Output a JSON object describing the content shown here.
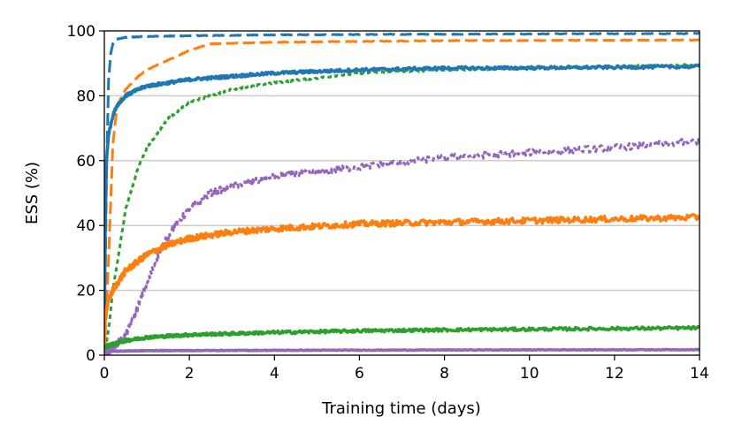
{
  "chart_data": {
    "type": "line",
    "title": "",
    "xlabel": "Training time (days)",
    "ylabel": "ESS (%)",
    "xlim": [
      0,
      14
    ],
    "ylim": [
      0,
      100
    ],
    "xticks": [
      0,
      2,
      4,
      6,
      8,
      10,
      12,
      14
    ],
    "yticks": [
      0,
      20,
      40,
      60,
      80,
      100
    ],
    "grid": "horizontal",
    "legend": "none",
    "colors": {
      "blue": "#1f77b4",
      "orange": "#ff7f0e",
      "green": "#2ca02c",
      "purple": "#9467bd"
    },
    "series": [
      {
        "name": "blue-dashed",
        "color": "#1f77b4",
        "style": "dashed",
        "noise": 0.1,
        "x": [
          0,
          0.05,
          0.1,
          0.15,
          0.2,
          0.3,
          0.5,
          1,
          2,
          4,
          8,
          14
        ],
        "y": [
          0,
          55,
          85,
          93,
          96,
          97.5,
          98,
          98.3,
          98.5,
          98.8,
          99,
          99.2
        ]
      },
      {
        "name": "orange-dashed",
        "color": "#ff7f0e",
        "style": "dashed",
        "noise": 0.1,
        "x": [
          0,
          0.1,
          0.2,
          0.3,
          0.5,
          0.8,
          1,
          1.5,
          2,
          2.5,
          4,
          8,
          14
        ],
        "y": [
          0,
          30,
          65,
          77,
          82,
          86,
          88,
          91,
          94,
          96,
          96.5,
          97,
          97.2
        ]
      },
      {
        "name": "green-dotted",
        "color": "#2ca02c",
        "style": "dotted",
        "noise": 0.3,
        "x": [
          0,
          0.1,
          0.2,
          0.3,
          0.5,
          0.8,
          1,
          1.5,
          2,
          3,
          4,
          6,
          8,
          10,
          12,
          14
        ],
        "y": [
          0,
          8,
          20,
          28,
          45,
          58,
          64,
          73,
          78,
          82,
          84,
          87,
          88,
          88.5,
          89,
          89.5
        ]
      },
      {
        "name": "purple-dotted",
        "color": "#9467bd",
        "style": "dotted",
        "noise": 1.0,
        "x": [
          0,
          0.5,
          0.7,
          1,
          1.3,
          1.6,
          2,
          2.5,
          3,
          4,
          5,
          6,
          8,
          10,
          12,
          14
        ],
        "y": [
          0,
          6,
          12,
          22,
          32,
          39,
          45,
          50,
          52,
          55,
          56.5,
          58,
          61,
          62.5,
          64,
          66
        ]
      },
      {
        "name": "blue-solid",
        "color": "#1f77b4",
        "style": "solid",
        "noise": 0.45,
        "x": [
          0,
          0.02,
          0.05,
          0.1,
          0.2,
          0.3,
          0.5,
          0.8,
          1,
          2,
          3,
          4,
          6,
          8,
          10,
          12,
          14
        ],
        "y": [
          0,
          40,
          60,
          68,
          74,
          77,
          80,
          82,
          83,
          85,
          86,
          87,
          88,
          88.5,
          88.6,
          88.8,
          89
        ]
      },
      {
        "name": "orange-solid",
        "color": "#ff7f0e",
        "style": "solid",
        "noise": 0.9,
        "x": [
          0,
          0.02,
          0.05,
          0.1,
          0.2,
          0.5,
          1,
          1.5,
          2,
          3,
          4,
          6,
          8,
          10,
          12,
          14
        ],
        "y": [
          0,
          10,
          14,
          17,
          20,
          26,
          31,
          34,
          36,
          38,
          39,
          40.5,
          41,
          41.5,
          42,
          42.5
        ]
      },
      {
        "name": "green-solid",
        "color": "#2ca02c",
        "style": "solid",
        "noise": 0.45,
        "x": [
          0,
          0.1,
          0.5,
          1,
          2,
          4,
          6,
          8,
          10,
          12,
          14
        ],
        "y": [
          2,
          3,
          4.5,
          5.5,
          6.3,
          7,
          7.5,
          7.8,
          8,
          8.2,
          8.4
        ]
      },
      {
        "name": "purple-solid",
        "color": "#9467bd",
        "style": "solid",
        "noise": 0.1,
        "x": [
          0,
          0.1,
          1,
          4,
          8,
          14
        ],
        "y": [
          1,
          1.2,
          1.4,
          1.5,
          1.6,
          1.7
        ]
      }
    ]
  }
}
